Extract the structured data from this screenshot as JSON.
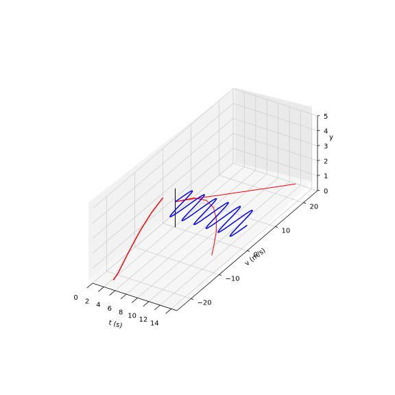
{
  "chart_data": {
    "type": "line",
    "projection": "3d",
    "title": "",
    "axes": {
      "x": {
        "label": "t (s)",
        "ticks": [
          "0",
          "2",
          "4",
          "6",
          "8",
          "10",
          "12",
          "14"
        ],
        "range": [
          0,
          15
        ]
      },
      "y": {
        "label": "v (m/s)",
        "ticks": [
          "−20",
          "−10",
          "0",
          "10",
          "20"
        ],
        "range": [
          -25,
          25
        ]
      },
      "z": {
        "label": "y",
        "ticks": [
          "0",
          "1",
          "2",
          "3",
          "4",
          "5"
        ],
        "range": [
          0,
          5
        ]
      }
    },
    "grid": true,
    "pane_color": "#f2f2f2",
    "series": [
      {
        "color": "#ff0000",
        "style": "thick",
        "t": [
          0,
          0.5,
          1,
          1.5,
          2,
          2.2
        ],
        "v": [
          0,
          -5,
          -10,
          -15,
          -20,
          -22
        ],
        "y": [
          1.7,
          1.58,
          1.25,
          0.72,
          0.1,
          0
        ]
      },
      {
        "color": "#000000",
        "t": [
          2.2,
          2.2,
          2.2,
          2.2,
          2.2
        ],
        "v": [
          0,
          0,
          0,
          0,
          0
        ],
        "y": [
          0,
          2,
          2.6,
          2.6,
          1.3
        ]
      },
      {
        "color": "#ff0000",
        "t": [
          2.2,
          4,
          7,
          10,
          13,
          15
        ],
        "v": [
          0,
          2.6,
          6.5,
          10.5,
          14.5,
          17.2
        ],
        "y": [
          1.7,
          1.7,
          1.7,
          1.7,
          1.7,
          1.7
        ]
      },
      {
        "color": "#ff0000",
        "t": [
          2.2,
          4,
          6,
          8,
          10,
          12,
          14,
          15
        ],
        "v": [
          0,
          3,
          3.5,
          2,
          -1,
          -5,
          -10,
          -12.6
        ],
        "y": [
          1.7,
          1.7,
          1.7,
          1.7,
          1.7,
          1.7,
          1.7,
          1.7
        ]
      },
      {
        "color": "#0000ff",
        "t_start": 2.2,
        "t_end": 15,
        "v_amplitude": 5,
        "oscillations": 6,
        "v_center": 0,
        "y": 1.7
      }
    ],
    "note": ""
  }
}
